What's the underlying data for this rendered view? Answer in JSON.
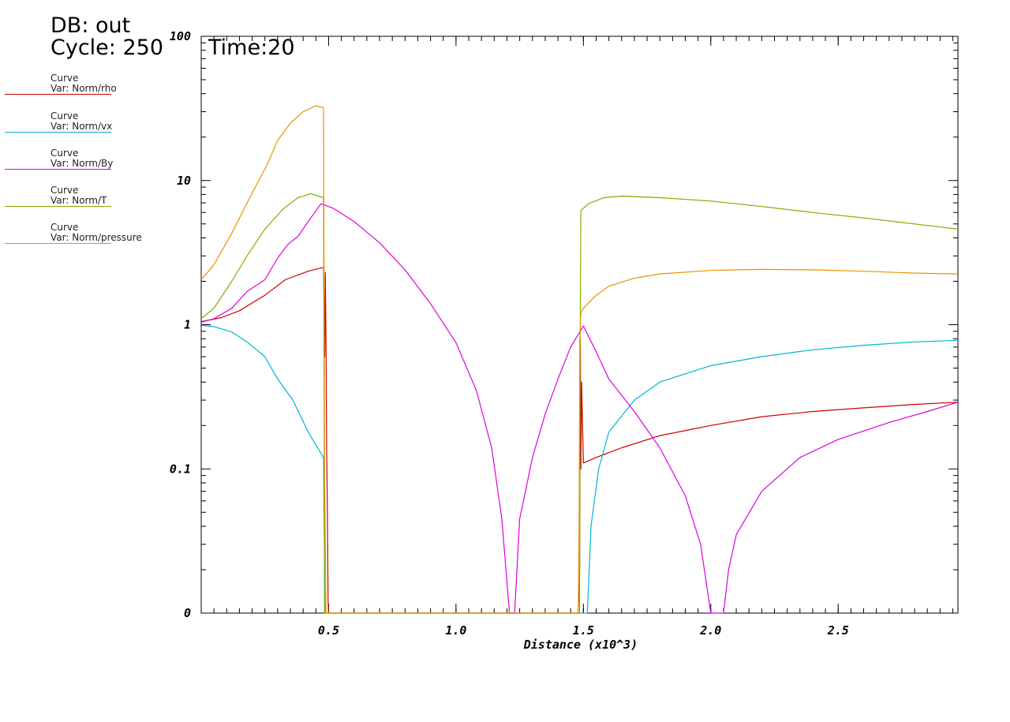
{
  "header": {
    "db": "DB: out",
    "cycle": "Cycle: 250",
    "time": "Time:20"
  },
  "legend": [
    {
      "line1": "Curve",
      "line2": "Var: Norm/rho",
      "color": "#cc0000"
    },
    {
      "line1": "Curve",
      "line2": "Var: Norm/vx",
      "color": "#00b4d8"
    },
    {
      "line1": "Curve",
      "line2": "Var: Norm/By",
      "color": "#dd00dd"
    },
    {
      "line1": "Curve",
      "line2": "Var: Norm/T",
      "color": "#88aa00"
    },
    {
      "line1": "Curve",
      "line2": "Var: Norm/pressure",
      "color": "#e69500"
    }
  ],
  "chart_data": {
    "type": "line",
    "title": "",
    "xlabel": "Distance (x10^3)",
    "ylabel": "",
    "yscale": "log",
    "xlim": [
      0.0,
      2.97
    ],
    "ylim": [
      0.01,
      100
    ],
    "x_ticks": [
      {
        "value": 0.5,
        "label": "0.5"
      },
      {
        "value": 1.0,
        "label": "1.0"
      },
      {
        "value": 1.5,
        "label": "1.5"
      },
      {
        "value": 2.0,
        "label": "2.0"
      },
      {
        "value": 2.5,
        "label": "2.5"
      }
    ],
    "y_ticks": [
      {
        "value": 0.01,
        "label": "0"
      },
      {
        "value": 0.1,
        "label": "0.1"
      },
      {
        "value": 1,
        "label": "1"
      },
      {
        "value": 10,
        "label": "10"
      },
      {
        "value": 100,
        "label": "100"
      }
    ],
    "grid": false,
    "legend_position": "top-left",
    "series": [
      {
        "name": "Var: Norm/rho",
        "color": "#cc0000",
        "points": [
          [
            0.0,
            1.05
          ],
          [
            0.08,
            1.12
          ],
          [
            0.15,
            1.25
          ],
          [
            0.25,
            1.6
          ],
          [
            0.33,
            2.05
          ],
          [
            0.42,
            2.35
          ],
          [
            0.48,
            2.5
          ],
          [
            0.485,
            0.6
          ],
          [
            0.487,
            2.3
          ],
          [
            0.49,
            0.7
          ],
          [
            0.492,
            0.15
          ],
          [
            0.495,
            0.06
          ],
          [
            0.498,
            0.012
          ],
          [
            0.5,
            0.01
          ],
          [
            1.48,
            0.01
          ],
          [
            1.485,
            0.02
          ],
          [
            1.488,
            0.8
          ],
          [
            1.49,
            0.1
          ],
          [
            1.493,
            0.4
          ],
          [
            1.5,
            0.11
          ],
          [
            1.55,
            0.12
          ],
          [
            1.65,
            0.14
          ],
          [
            1.8,
            0.17
          ],
          [
            2.0,
            0.2
          ],
          [
            2.2,
            0.23
          ],
          [
            2.4,
            0.25
          ],
          [
            2.6,
            0.265
          ],
          [
            2.8,
            0.28
          ],
          [
            2.97,
            0.29
          ]
        ]
      },
      {
        "name": "Var: Norm/vx",
        "color": "#00b4d8",
        "points": [
          [
            0.0,
            0.99
          ],
          [
            0.05,
            0.97
          ],
          [
            0.12,
            0.89
          ],
          [
            0.18,
            0.76
          ],
          [
            0.25,
            0.6
          ],
          [
            0.3,
            0.42
          ],
          [
            0.36,
            0.3
          ],
          [
            0.42,
            0.18
          ],
          [
            0.48,
            0.12
          ],
          [
            0.483,
            0.03
          ],
          [
            0.486,
            0.01
          ],
          [
            1.515,
            0.01
          ],
          [
            1.52,
            0.015
          ],
          [
            1.53,
            0.04
          ],
          [
            1.56,
            0.1
          ],
          [
            1.6,
            0.18
          ],
          [
            1.7,
            0.3
          ],
          [
            1.8,
            0.4
          ],
          [
            2.0,
            0.52
          ],
          [
            2.2,
            0.6
          ],
          [
            2.4,
            0.67
          ],
          [
            2.6,
            0.72
          ],
          [
            2.8,
            0.76
          ],
          [
            2.97,
            0.78
          ]
        ]
      },
      {
        "name": "Var: Norm/By",
        "color": "#dd00dd",
        "points": [
          [
            0.0,
            1.04
          ],
          [
            0.05,
            1.1
          ],
          [
            0.12,
            1.3
          ],
          [
            0.18,
            1.7
          ],
          [
            0.25,
            2.05
          ],
          [
            0.3,
            2.9
          ],
          [
            0.34,
            3.6
          ],
          [
            0.38,
            4.1
          ],
          [
            0.42,
            5.2
          ],
          [
            0.47,
            6.9
          ],
          [
            0.52,
            6.4
          ],
          [
            0.6,
            5.2
          ],
          [
            0.7,
            3.7
          ],
          [
            0.8,
            2.4
          ],
          [
            0.9,
            1.4
          ],
          [
            1.0,
            0.75
          ],
          [
            1.08,
            0.35
          ],
          [
            1.14,
            0.14
          ],
          [
            1.18,
            0.045
          ],
          [
            1.21,
            0.01
          ],
          [
            1.23,
            0.01
          ],
          [
            1.25,
            0.045
          ],
          [
            1.3,
            0.12
          ],
          [
            1.35,
            0.24
          ],
          [
            1.4,
            0.42
          ],
          [
            1.45,
            0.7
          ],
          [
            1.5,
            0.98
          ],
          [
            1.55,
            0.65
          ],
          [
            1.6,
            0.42
          ],
          [
            1.7,
            0.25
          ],
          [
            1.8,
            0.14
          ],
          [
            1.9,
            0.065
          ],
          [
            1.96,
            0.03
          ],
          [
            2.0,
            0.01
          ],
          [
            2.05,
            0.01
          ],
          [
            2.07,
            0.02
          ],
          [
            2.1,
            0.035
          ],
          [
            2.2,
            0.07
          ],
          [
            2.35,
            0.12
          ],
          [
            2.5,
            0.16
          ],
          [
            2.7,
            0.21
          ],
          [
            2.85,
            0.25
          ],
          [
            2.97,
            0.29
          ]
        ]
      },
      {
        "name": "Var: Norm/T",
        "color": "#88aa00",
        "points": [
          [
            0.0,
            1.1
          ],
          [
            0.05,
            1.3
          ],
          [
            0.12,
            2.0
          ],
          [
            0.18,
            3.0
          ],
          [
            0.25,
            4.6
          ],
          [
            0.32,
            6.3
          ],
          [
            0.38,
            7.6
          ],
          [
            0.43,
            8.1
          ],
          [
            0.48,
            7.6
          ],
          [
            0.482,
            0.5
          ],
          [
            0.484,
            0.01
          ],
          [
            1.485,
            0.01
          ],
          [
            1.487,
            0.5
          ],
          [
            1.49,
            6.2
          ],
          [
            1.52,
            6.9
          ],
          [
            1.58,
            7.6
          ],
          [
            1.65,
            7.8
          ],
          [
            1.8,
            7.6
          ],
          [
            2.0,
            7.2
          ],
          [
            2.2,
            6.6
          ],
          [
            2.4,
            6.0
          ],
          [
            2.6,
            5.5
          ],
          [
            2.8,
            5.0
          ],
          [
            2.97,
            4.6
          ]
        ]
      },
      {
        "name": "Var: Norm/pressure",
        "color": "#e69500",
        "points": [
          [
            0.0,
            2.05
          ],
          [
            0.05,
            2.6
          ],
          [
            0.12,
            4.3
          ],
          [
            0.2,
            8.2
          ],
          [
            0.26,
            13
          ],
          [
            0.3,
            19
          ],
          [
            0.35,
            25
          ],
          [
            0.4,
            30
          ],
          [
            0.45,
            33
          ],
          [
            0.48,
            32
          ],
          [
            0.482,
            3.0
          ],
          [
            0.484,
            0.1
          ],
          [
            0.49,
            0.01
          ],
          [
            1.48,
            0.01
          ],
          [
            1.483,
            0.04
          ],
          [
            1.486,
            0.8
          ],
          [
            1.49,
            1.2
          ],
          [
            1.5,
            1.3
          ],
          [
            1.55,
            1.6
          ],
          [
            1.6,
            1.85
          ],
          [
            1.7,
            2.1
          ],
          [
            1.8,
            2.25
          ],
          [
            2.0,
            2.38
          ],
          [
            2.2,
            2.42
          ],
          [
            2.4,
            2.4
          ],
          [
            2.6,
            2.35
          ],
          [
            2.8,
            2.28
          ],
          [
            2.97,
            2.25
          ]
        ]
      }
    ]
  }
}
